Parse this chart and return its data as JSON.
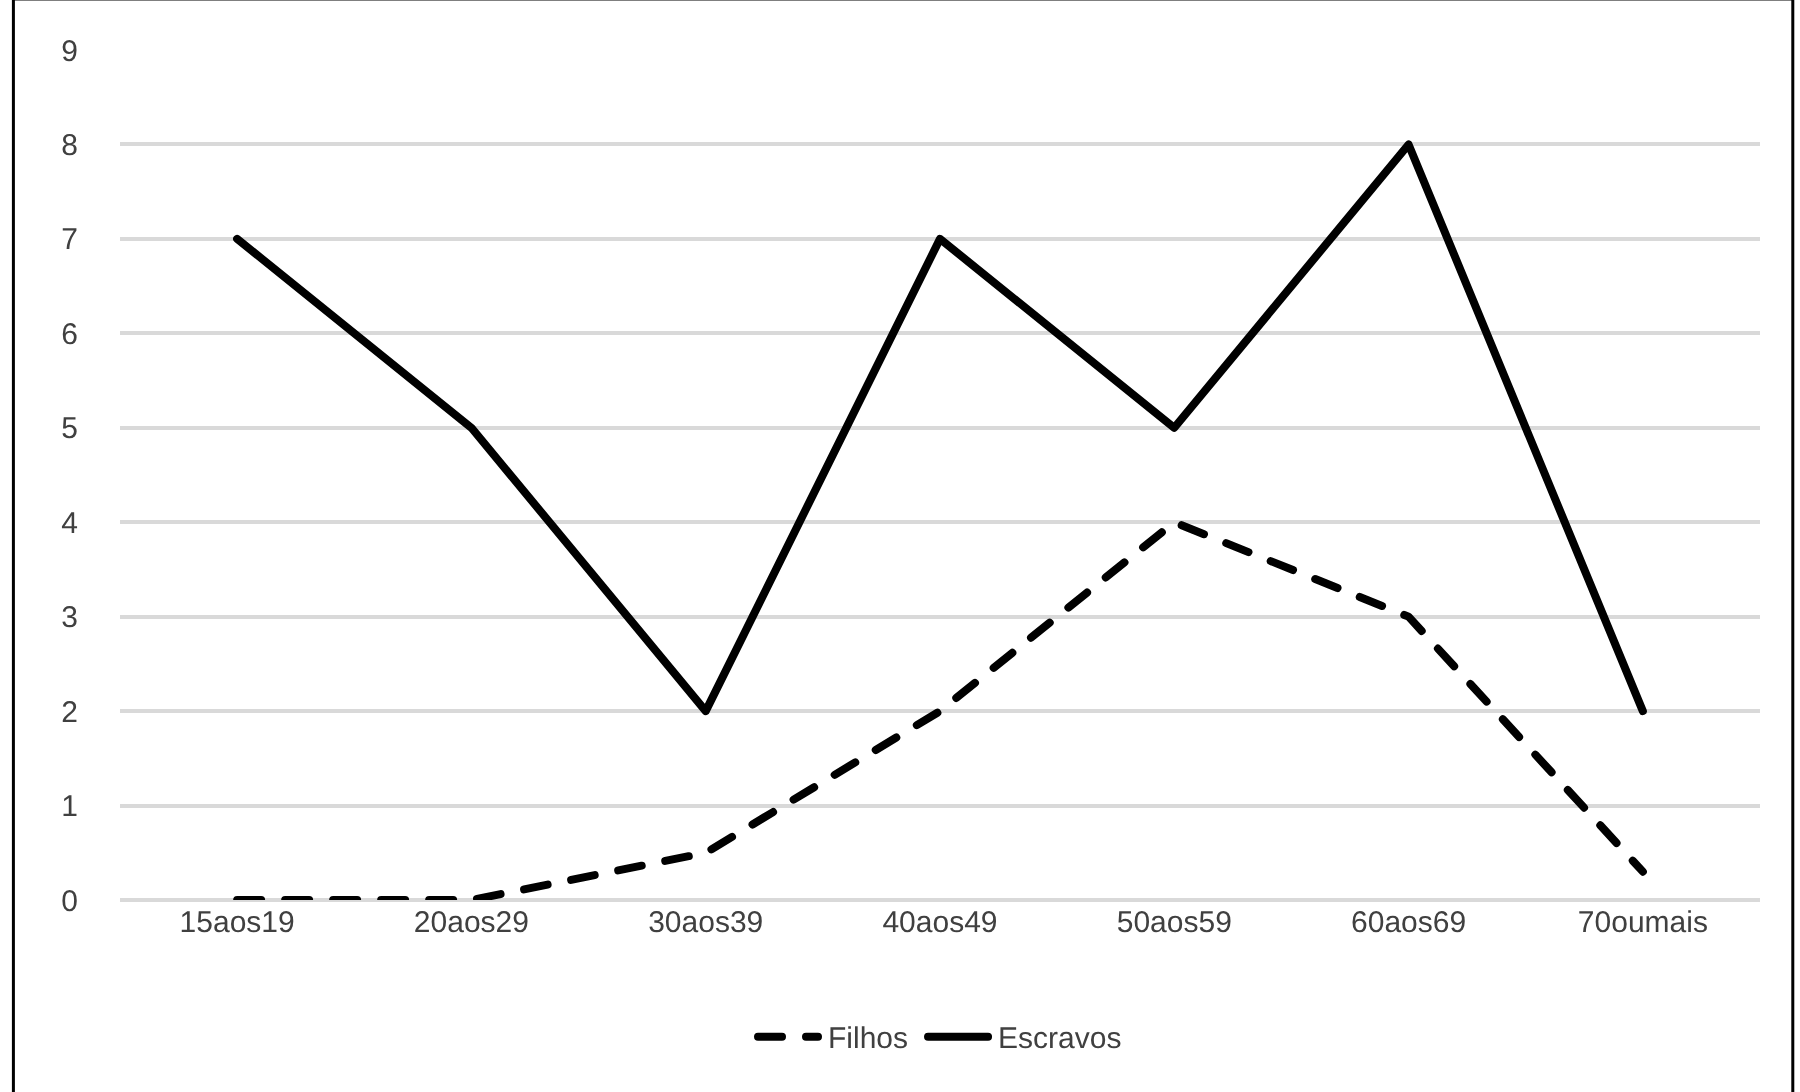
{
  "chart_data": {
    "type": "line",
    "categories": [
      "15aos19",
      "20aos29",
      "30aos39",
      "40aos49",
      "50aos59",
      "60aos69",
      "70oumais"
    ],
    "series": [
      {
        "name": "Filhos",
        "color": "#000000",
        "line_style": "dashed",
        "values": [
          0,
          0,
          0.5,
          2,
          4,
          3,
          0.3
        ]
      },
      {
        "name": "Escravos",
        "color": "#000000",
        "line_style": "solid",
        "values": [
          7,
          5,
          2,
          7,
          5,
          8,
          2
        ]
      }
    ],
    "ylim": [
      0,
      9
    ],
    "yticks": [
      0,
      1,
      2,
      3,
      4,
      5,
      6,
      7,
      8,
      9
    ],
    "grid": "y",
    "legend": "bottom",
    "marker": "none"
  }
}
